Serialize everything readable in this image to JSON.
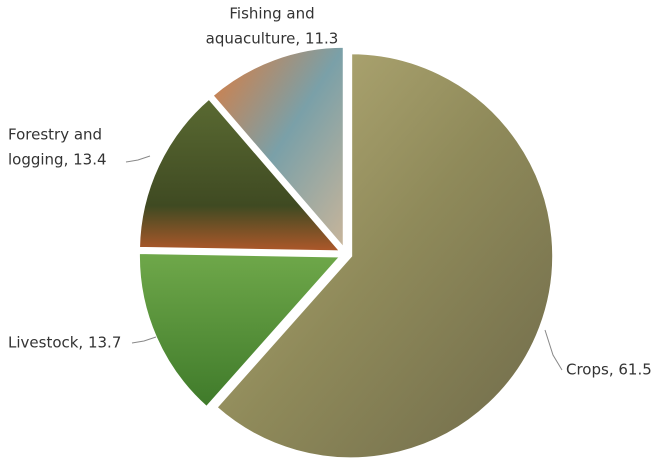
{
  "chart_data": {
    "type": "pie",
    "values": [
      61.5,
      13.7,
      13.4,
      11.3
    ],
    "value_labels": [
      [
        "Crops, 61.5"
      ],
      [
        "Livestock, 13.7"
      ],
      [
        "Forestry and",
        "logging, 13.4"
      ],
      [
        "Fishing and",
        "aquaculture, 11.3"
      ]
    ],
    "colors": [
      "#8f8a5a",
      "#5c9a3a",
      "#4b5a2a",
      "#c98a5a"
    ]
  }
}
